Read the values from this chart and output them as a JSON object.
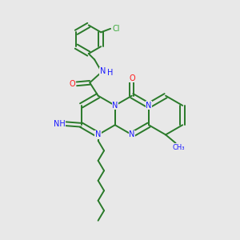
{
  "bg_color": "#e8e8e8",
  "bond_color": "#2a7a2a",
  "n_color": "#1a1aff",
  "o_color": "#ff1a1a",
  "cl_color": "#3aaa3a",
  "figsize": [
    3.0,
    3.0
  ],
  "dpi": 100,
  "xlim": [
    0,
    10
  ],
  "ylim": [
    0,
    10
  ]
}
